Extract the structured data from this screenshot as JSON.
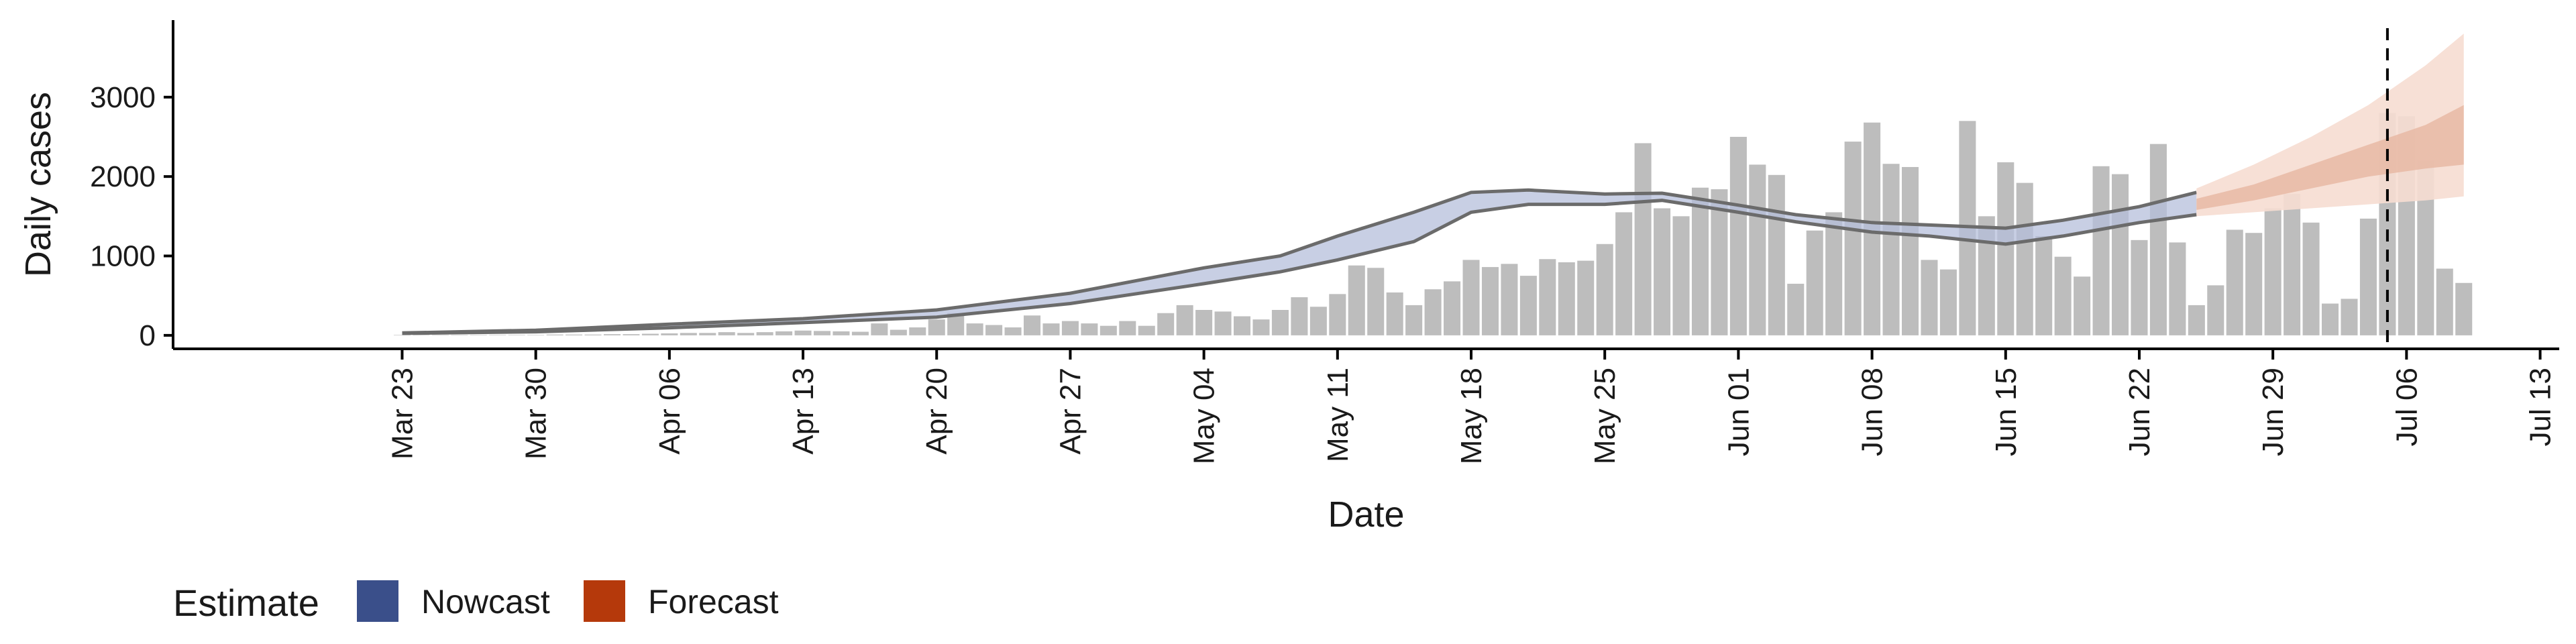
{
  "chart_data": {
    "type": "bar",
    "xlabel": "Date",
    "ylabel": "Daily cases",
    "ylim": [
      -170,
      3970
    ],
    "yticks": [
      0,
      1000,
      2000,
      3000
    ],
    "x_range": [
      "2020-03-11",
      "2020-07-14"
    ],
    "x_tick_labels": [
      {
        "date": "2020-03-23",
        "label": "Mar 23"
      },
      {
        "date": "2020-03-30",
        "label": "Mar 30"
      },
      {
        "date": "2020-04-06",
        "label": "Apr 06"
      },
      {
        "date": "2020-04-13",
        "label": "Apr 13"
      },
      {
        "date": "2020-04-20",
        "label": "Apr 20"
      },
      {
        "date": "2020-04-27",
        "label": "Apr 27"
      },
      {
        "date": "2020-05-04",
        "label": "May 04"
      },
      {
        "date": "2020-05-11",
        "label": "May 11"
      },
      {
        "date": "2020-05-18",
        "label": "May 18"
      },
      {
        "date": "2020-05-25",
        "label": "May 25"
      },
      {
        "date": "2020-06-01",
        "label": "Jun 01"
      },
      {
        "date": "2020-06-08",
        "label": "Jun 08"
      },
      {
        "date": "2020-06-15",
        "label": "Jun 15"
      },
      {
        "date": "2020-06-22",
        "label": "Jun 22"
      },
      {
        "date": "2020-06-29",
        "label": "Jun 29"
      },
      {
        "date": "2020-07-06",
        "label": "Jul 06"
      },
      {
        "date": "2020-07-13",
        "label": "Jul 13"
      }
    ],
    "bars": {
      "start_date": "2020-03-23",
      "color": "#bdbdbd",
      "values": [
        5,
        5,
        5,
        5,
        5,
        5,
        5,
        5,
        10,
        10,
        10,
        15,
        15,
        20,
        25,
        30,
        30,
        40,
        30,
        40,
        50,
        60,
        55,
        50,
        45,
        150,
        70,
        100,
        200,
        280,
        150,
        130,
        100,
        250,
        150,
        180,
        150,
        120,
        180,
        120,
        280,
        380,
        320,
        300,
        240,
        200,
        320,
        480,
        360,
        520,
        880,
        850,
        540,
        380,
        580,
        680,
        950,
        860,
        900,
        750,
        960,
        920,
        940,
        1150,
        1550,
        2420,
        1600,
        1500,
        1860,
        1840,
        2500,
        2150,
        2020,
        650,
        1320,
        1550,
        2440,
        2680,
        2160,
        2120,
        950,
        830,
        2700,
        1500,
        2180,
        1920,
        1250,
        990,
        740,
        2130,
        2030,
        1200,
        2410,
        1170,
        380,
        630,
        1330,
        1290,
        1600,
        1780,
        1420,
        400,
        460,
        1470,
        2800,
        2760,
        2200,
        840,
        660
      ]
    },
    "nowcast": {
      "name": "Nowcast",
      "color": "#3a4f8a",
      "band_color": "#b5bfdb",
      "line_color": "#6b6b6b",
      "dates": [
        "2020-03-23",
        "2020-03-30",
        "2020-04-06",
        "2020-04-13",
        "2020-04-20",
        "2020-04-27",
        "2020-05-04",
        "2020-05-08",
        "2020-05-11",
        "2020-05-15",
        "2020-05-18",
        "2020-05-21",
        "2020-05-25",
        "2020-05-28",
        "2020-06-01",
        "2020-06-04",
        "2020-06-08",
        "2020-06-11",
        "2020-06-15",
        "2020-06-18",
        "2020-06-22",
        "2020-06-25"
      ],
      "lower": [
        25,
        45,
        95,
        160,
        230,
        400,
        650,
        800,
        950,
        1180,
        1550,
        1650,
        1650,
        1700,
        1550,
        1430,
        1300,
        1250,
        1150,
        1250,
        1420,
        1520
      ],
      "upper": [
        30,
        65,
        140,
        210,
        320,
        530,
        850,
        1000,
        1250,
        1550,
        1800,
        1830,
        1780,
        1790,
        1640,
        1520,
        1420,
        1390,
        1350,
        1450,
        1620,
        1800
      ]
    },
    "forecast": {
      "name": "Forecast",
      "color": "#b5390b",
      "inner_band_color": "#e8b9a4",
      "outer_band_color": "#f6ddd2",
      "dates": [
        "2020-06-25",
        "2020-06-28",
        "2020-07-01",
        "2020-07-04",
        "2020-07-07",
        "2020-07-09"
      ],
      "outer_lower": [
        1500,
        1550,
        1600,
        1650,
        1700,
        1750
      ],
      "outer_upper": [
        1850,
        2150,
        2500,
        2900,
        3400,
        3800
      ],
      "inner_lower": [
        1580,
        1700,
        1850,
        2000,
        2100,
        2150
      ],
      "inner_upper": [
        1720,
        1900,
        2150,
        2400,
        2650,
        2900
      ]
    },
    "vline_date": "2020-07-05",
    "legend": {
      "title": "Estimate",
      "position": "bottom-left",
      "items": [
        {
          "label": "Nowcast",
          "color": "#3a4f8a"
        },
        {
          "label": "Forecast",
          "color": "#b5390b"
        }
      ]
    },
    "grid": false
  }
}
